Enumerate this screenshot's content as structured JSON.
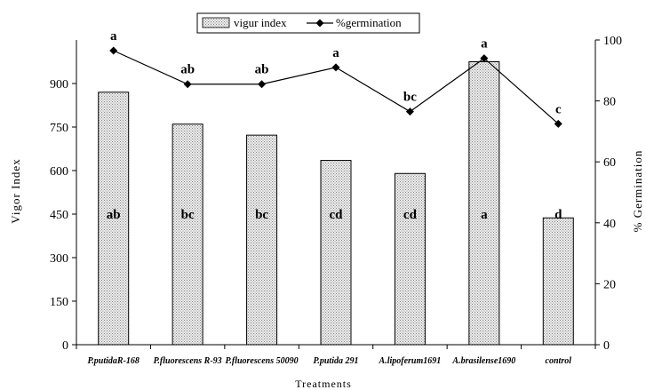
{
  "chart_data": {
    "type": "bar",
    "xlabel": "Treatments",
    "ylabel": "Vigor Index",
    "y2label": "% Germination",
    "ylim": [
      0,
      1050
    ],
    "yticks": [
      0,
      150,
      300,
      450,
      600,
      750,
      900
    ],
    "y2lim": [
      0,
      100
    ],
    "y2ticks": [
      0,
      20,
      40,
      60,
      80,
      100
    ],
    "categories": [
      "P.putidaR-168",
      "P.fluorescens R-93",
      "P.fluorescens 50090",
      "P.putida 291",
      "A.lipoferum1691",
      "A.brasilense1690",
      "control"
    ],
    "series": [
      {
        "name": "vigur index",
        "type": "bar",
        "axis": "left",
        "values": [
          870,
          760,
          722,
          635,
          590,
          975,
          437
        ],
        "labels": [
          "ab",
          "bc",
          "bc",
          "cd",
          "cd",
          "a",
          "d"
        ]
      },
      {
        "name": "%germination",
        "type": "line",
        "axis": "right",
        "marker": "diamond",
        "values": [
          96.5,
          85.5,
          85.5,
          91,
          76.5,
          94,
          72.5
        ],
        "labels": [
          "a",
          "ab",
          "ab",
          "a",
          "bc",
          "a",
          "c"
        ]
      }
    ],
    "legend_position": "top-center",
    "grid": false,
    "colors": {
      "bar_fill": "#ececec",
      "bar_stipple": "#8a8a8a",
      "line": "#000000"
    }
  }
}
